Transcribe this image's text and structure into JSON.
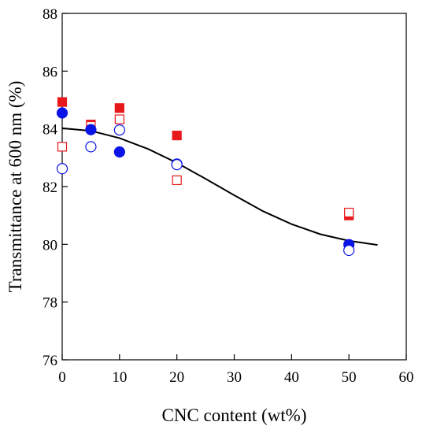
{
  "chart_data": {
    "type": "scatter",
    "title": "",
    "xlabel": "CNC content (wt%)",
    "ylabel": "Transmittance at 600 nm (%)",
    "xlim": [
      0,
      60
    ],
    "ylim": [
      76,
      88
    ],
    "xticks": [
      0,
      10,
      20,
      30,
      40,
      50,
      60
    ],
    "yticks": [
      76,
      78,
      80,
      82,
      84,
      86,
      88
    ],
    "grid": false,
    "legend": "none",
    "series": [
      {
        "marker": "filled-square",
        "color": "#e8191a",
        "points": [
          [
            0,
            84.93
          ],
          [
            5,
            84.15
          ],
          [
            10,
            84.72
          ],
          [
            20,
            83.77
          ],
          [
            50,
            81.0
          ]
        ]
      },
      {
        "marker": "open-square",
        "color": "#e8191a",
        "points": [
          [
            0,
            83.38
          ],
          [
            5,
            84.1
          ],
          [
            10,
            84.33
          ],
          [
            20,
            82.22
          ],
          [
            50,
            81.1
          ]
        ]
      },
      {
        "marker": "filled-circle",
        "color": "#0a14e6",
        "points": [
          [
            0,
            84.55
          ],
          [
            5,
            83.97
          ],
          [
            10,
            83.2
          ],
          [
            20,
            82.78
          ],
          [
            50,
            79.99
          ]
        ]
      },
      {
        "marker": "open-circle",
        "color": "#0a14e6",
        "points": [
          [
            0,
            82.62
          ],
          [
            5,
            83.38
          ],
          [
            10,
            83.96
          ],
          [
            20,
            82.76
          ],
          [
            50,
            79.79
          ]
        ]
      }
    ],
    "fit_curve": {
      "color": "#000000",
      "points": [
        [
          0,
          84.02
        ],
        [
          5,
          83.93
        ],
        [
          10,
          83.68
        ],
        [
          15,
          83.3
        ],
        [
          20,
          82.82
        ],
        [
          25,
          82.27
        ],
        [
          30,
          81.7
        ],
        [
          35,
          81.15
        ],
        [
          40,
          80.7
        ],
        [
          45,
          80.35
        ],
        [
          50,
          80.12
        ],
        [
          55,
          79.98
        ]
      ]
    }
  }
}
